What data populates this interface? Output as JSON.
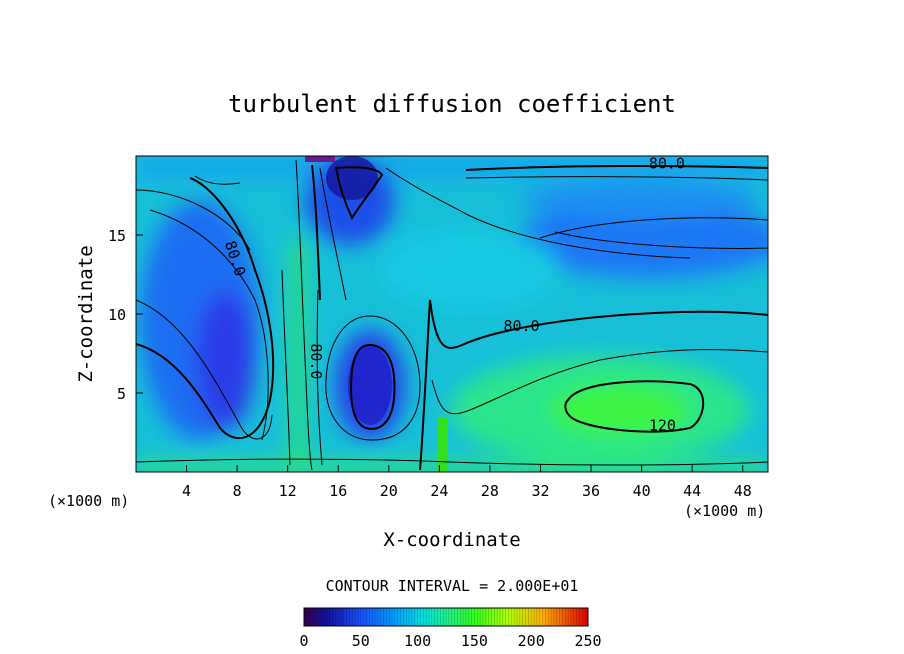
{
  "chart_data": {
    "type": "heatmap",
    "title": "turbulent diffusion coefficient",
    "xlabel": "X-coordinate",
    "ylabel": "Z-coordinate",
    "x_unit": "(×1000 m)",
    "y_unit": "(×1000 m)",
    "xlim": [
      0,
      50
    ],
    "ylim": [
      0,
      20
    ],
    "x_ticks": [
      4,
      8,
      12,
      16,
      20,
      24,
      28,
      32,
      36,
      40,
      44,
      48
    ],
    "y_ticks": [
      5,
      10,
      15
    ],
    "contour_interval_text": "CONTOUR INTERVAL = 2.000E+01",
    "contour_labels": [
      {
        "text": "80.0",
        "x": 7.8,
        "z": 13.5
      },
      {
        "text": "80.0",
        "x": 14.2,
        "z": 7.0
      },
      {
        "text": "80.0",
        "x": 30.5,
        "z": 9.2
      },
      {
        "text": "80.0",
        "x": 42.0,
        "z": 19.5
      },
      {
        "text": "120.",
        "x": 42.0,
        "z": 2.9
      }
    ],
    "colorbar": {
      "min": 0,
      "max": 250,
      "tick_values": [
        0,
        50,
        100,
        150,
        200,
        250
      ],
      "tick_labels": [
        "0",
        "50",
        "100",
        "150",
        "200",
        "250"
      ]
    },
    "features": [
      {
        "kind": "minimum",
        "x": 18.8,
        "z": 5.2,
        "value": 20
      },
      {
        "kind": "minimum",
        "x": 17.5,
        "z": 18.5,
        "value": 15
      },
      {
        "kind": "minimum",
        "x": 6.5,
        "z": 9.5,
        "value": 45
      },
      {
        "kind": "minimum",
        "x": 38.0,
        "z": 15.0,
        "value": 55
      },
      {
        "kind": "maximum",
        "x": 38.0,
        "z": 3.8,
        "value": 140
      },
      {
        "kind": "maximum",
        "x": 13.0,
        "z": 6.0,
        "value": 120
      },
      {
        "kind": "maximum",
        "x": 24.4,
        "z": 1.5,
        "value": 160
      }
    ]
  }
}
